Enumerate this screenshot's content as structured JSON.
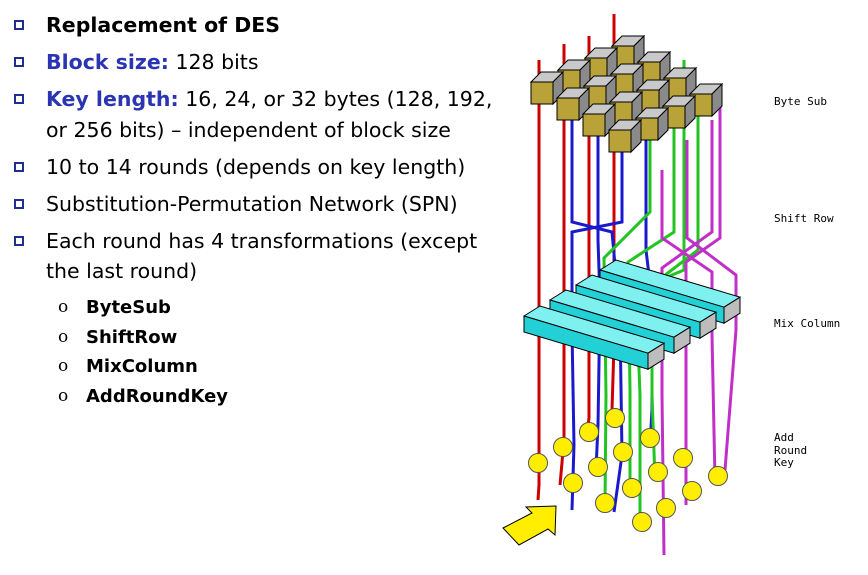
{
  "bullets": [
    {
      "bold": "Replacement of DES",
      "text": ""
    },
    {
      "key": "Block size:",
      "text": "128 bits"
    },
    {
      "key": "Key length:",
      "text": "16, 24, or 32 bytes (128, 192,",
      "text2": "or 256 bits) – independent of block size"
    },
    {
      "text": "10 to 14 rounds (depends on key length)"
    },
    {
      "text": "Substitution-Permutation Network (SPN)"
    },
    {
      "text": "Each round has 4 transformations (except",
      "text2": "the last round)"
    }
  ],
  "sub_bullets": [
    "ByteSub",
    "ShiftRow",
    "MixColumn",
    "AddRoundKey"
  ],
  "sub_marker": "o",
  "diagram": {
    "labels": {
      "byte_sub": "Byte Sub",
      "shift_row": "Shift Row",
      "mix_column": "Mix Column",
      "add_round_key": [
        "Add",
        "Round",
        "Key"
      ]
    },
    "colors": {
      "red": "#cc0000",
      "blue": "#1a1acc",
      "green": "#22c422",
      "magenta": "#c030c8",
      "cube_top": "#c9c9c9",
      "cube_side": "#8a8a8a",
      "cube_front": "#b9a238",
      "mix_top": "#7ff0f0",
      "mix_front": "#22d0d6",
      "key_ball": "#ffee00",
      "arrow": "#ffee00"
    }
  }
}
